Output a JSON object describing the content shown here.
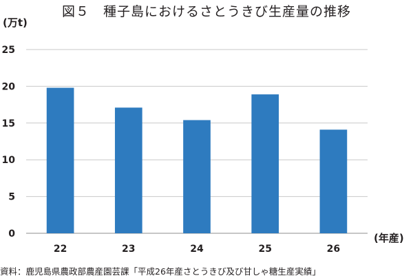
{
  "chart_data": {
    "type": "bar",
    "title": "図５　種子島におけるさとうきび生産量の推移",
    "ylabel": "(万t)",
    "xlabel": "(年産)",
    "categories": [
      "22",
      "23",
      "24",
      "25",
      "26"
    ],
    "values": [
      19.8,
      17.1,
      15.4,
      18.9,
      14.1
    ],
    "ylim": [
      0,
      25
    ],
    "yticks": [
      0,
      5,
      10,
      15,
      20,
      25
    ],
    "grid": true,
    "bar_color": "#2e7bbf",
    "source": "資料：鹿児島県農政部農産園芸課「平成26年産さとうきび及び甘しゃ糖生産実績」"
  }
}
